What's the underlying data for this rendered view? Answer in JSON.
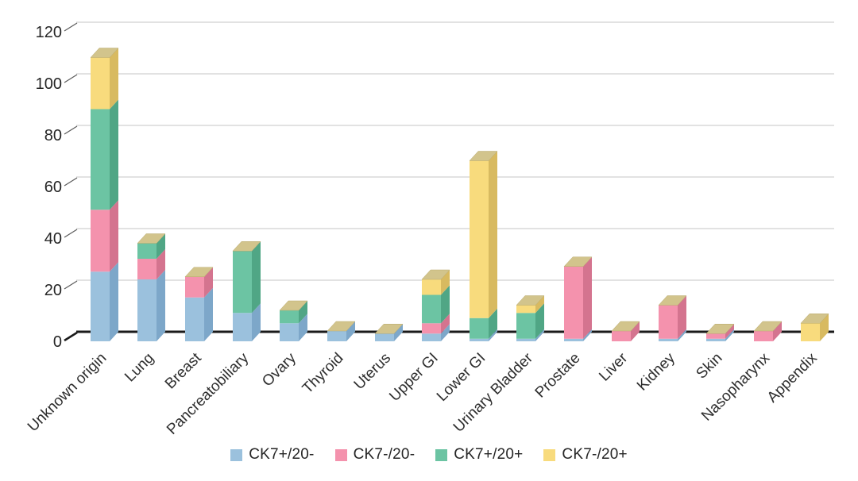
{
  "figure": {
    "background": "#ffffff"
  },
  "chart_data": {
    "type": "bar",
    "stacked": true,
    "style_3d": true,
    "title": "",
    "xlabel": "",
    "ylabel": "",
    "categories": [
      "Unknown origin",
      "Lung",
      "Breast",
      "Pancreatobiliary",
      "Ovary",
      "Thyroid",
      "Uterus",
      "Upper GI",
      "Lower GI",
      "Urinary Bladder",
      "Prostate",
      "Liver",
      "Kidney",
      "Skin",
      "Nasopharynx",
      "Appendix"
    ],
    "series": [
      {
        "name": "CK7+/20-",
        "color": "#9bc1dd",
        "side_color": "#7da7c9",
        "values": [
          27,
          24,
          17,
          11,
          7,
          4,
          3,
          3,
          1,
          1,
          1,
          0,
          1,
          1,
          0,
          0
        ]
      },
      {
        "name": "CK7-/20-",
        "color": "#f492ad",
        "side_color": "#d4748f",
        "values": [
          24,
          8,
          8,
          0,
          0,
          0,
          0,
          4,
          0,
          0,
          28,
          4,
          13,
          2,
          4,
          0
        ]
      },
      {
        "name": "CK7+/20+",
        "color": "#6cc4a3",
        "side_color": "#50a685",
        "values": [
          39,
          6,
          0,
          24,
          5,
          0,
          0,
          11,
          8,
          10,
          0,
          0,
          0,
          0,
          0,
          0
        ]
      },
      {
        "name": "CK7-/20+",
        "color": "#f8db7d",
        "side_color": "#d8ba60",
        "values": [
          20,
          0,
          0,
          0,
          0,
          0,
          0,
          6,
          61,
          3,
          0,
          0,
          0,
          0,
          0,
          7
        ]
      }
    ],
    "top_face_color": "#d2c48c",
    "ylim": [
      0,
      120
    ],
    "yticks": [
      0,
      20,
      40,
      60,
      80,
      100,
      120
    ],
    "grid": true,
    "gridline_color": "#d9d9d9",
    "axis_color": "#1a1a1a",
    "tick_label_color": "#262626",
    "category_label_color": "#2e2e2e",
    "x_tick_rotation": -45,
    "legend_position": "bottom"
  }
}
